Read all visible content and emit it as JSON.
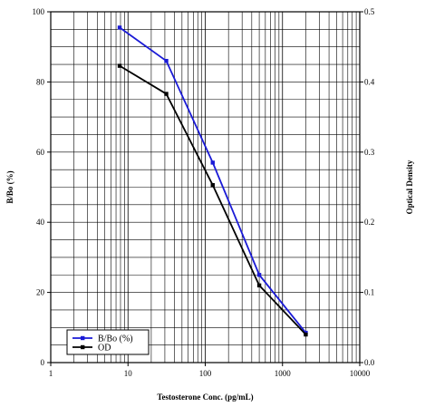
{
  "chart_data": {
    "type": "line",
    "title": "",
    "xlabel": "Testosterone Conc. (pg/mL)",
    "ylabel": "B/Bo (%)",
    "y2label": "Optical Density",
    "x_scale": "log",
    "xlim": [
      1,
      10000
    ],
    "ylim": [
      0,
      100
    ],
    "y2lim": [
      0,
      0.5
    ],
    "grid": true,
    "legend_placement": "bottom-left",
    "x_ticks": [
      1,
      10,
      100,
      1000,
      10000
    ],
    "x_tick_labels": [
      "1",
      "10",
      "100",
      "1000",
      "10000"
    ],
    "y_ticks": [
      0,
      20,
      40,
      60,
      80,
      100
    ],
    "y_tick_labels": [
      "0",
      "20",
      "40",
      "60",
      "80",
      "100"
    ],
    "y2_ticks": [
      0,
      0.1,
      0.2,
      0.3,
      0.4,
      0.5
    ],
    "y2_tick_labels": [
      "0.0",
      "0.1",
      "0.2",
      "0.3",
      "0.4",
      "0.5"
    ],
    "series": [
      {
        "name": "B/Bo (%)",
        "axis": "left",
        "color": "#1a1ad6",
        "x": [
          7.8,
          31.3,
          125,
          500,
          2000
        ],
        "values": [
          95.5,
          86,
          57,
          25,
          8.5
        ]
      },
      {
        "name": "OD",
        "axis": "right",
        "color": "#000000",
        "x": [
          7.8,
          31.3,
          125,
          500,
          2000
        ],
        "values": [
          0.423,
          0.383,
          0.253,
          0.11,
          0.04
        ]
      }
    ]
  }
}
